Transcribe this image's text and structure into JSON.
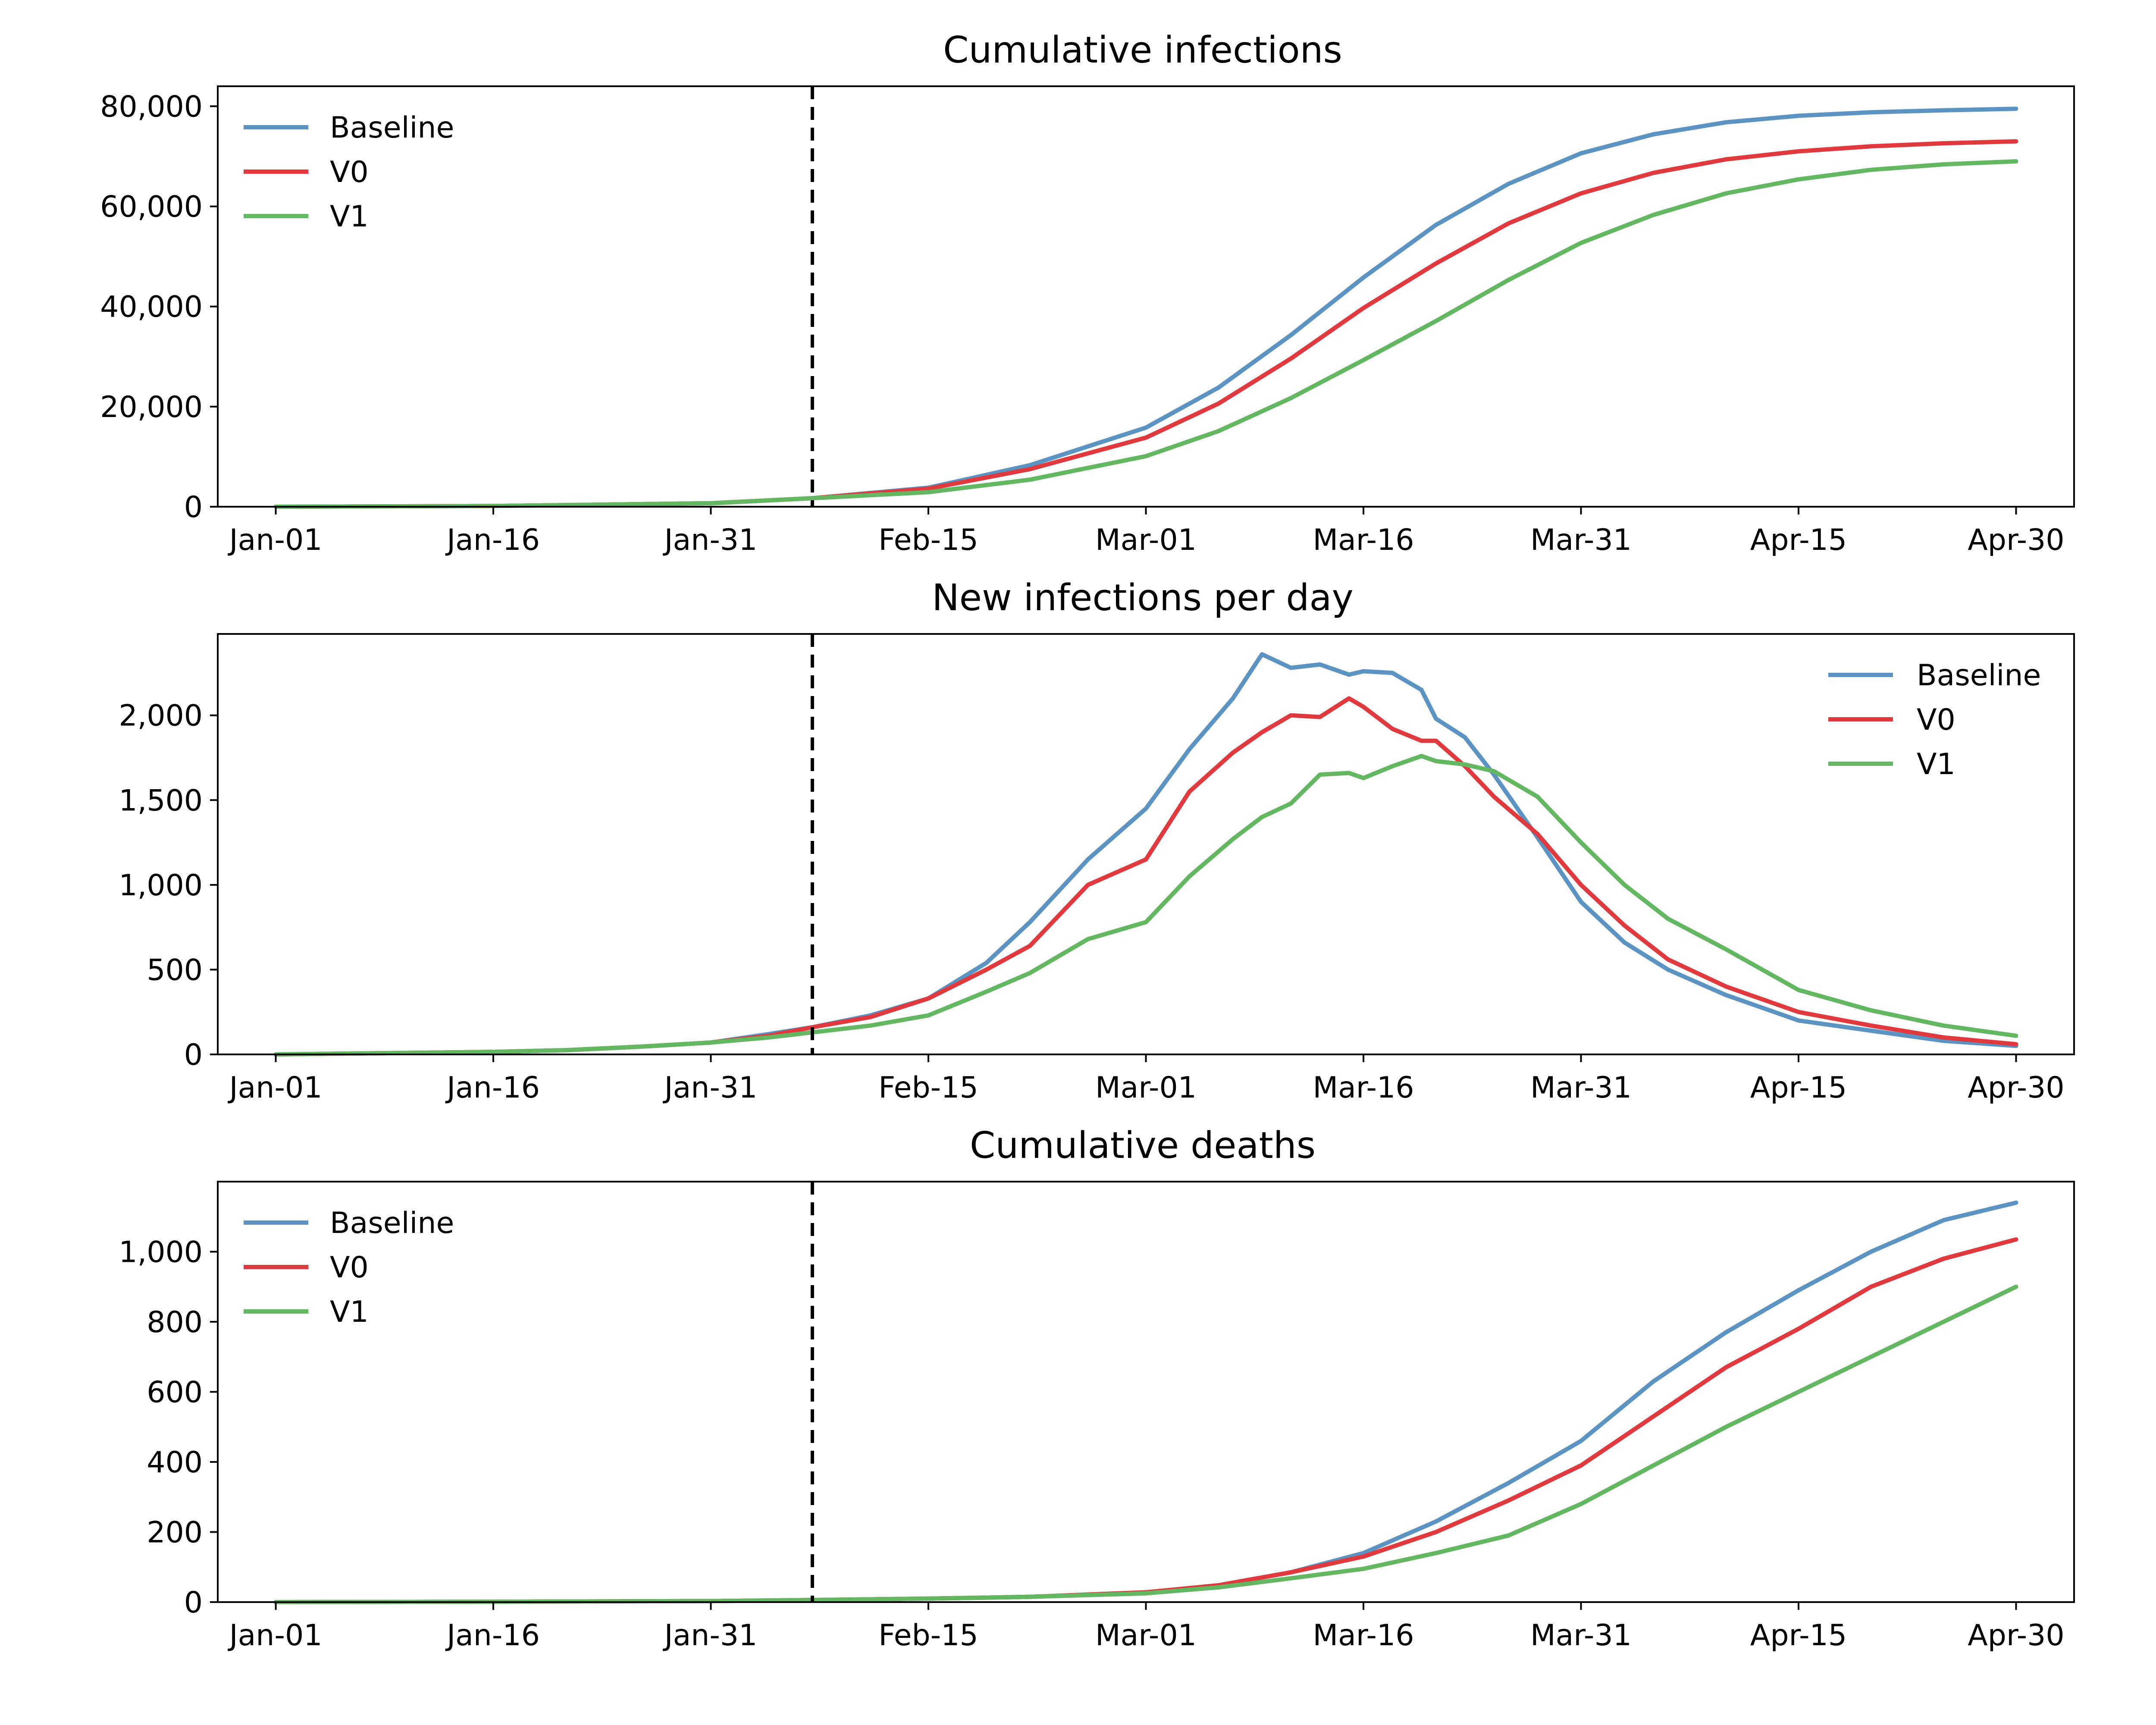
{
  "colors": {
    "Baseline": "#5b93c2",
    "V0": "#e0393e",
    "V1": "#63b761",
    "axis": "#000000",
    "marker": "#000000"
  },
  "chart_data": [
    {
      "type": "line",
      "title": "Cumulative infections",
      "xlabel": "",
      "ylabel": "",
      "xlim": [
        "Dec-28",
        "May-04"
      ],
      "ylim": [
        0,
        84000
      ],
      "x_ticks": [
        "Jan-01",
        "Jan-16",
        "Jan-31",
        "Feb-15",
        "Mar-01",
        "Mar-16",
        "Mar-31",
        "Apr-15",
        "Apr-30"
      ],
      "y_ticks": [
        0,
        20000,
        40000,
        60000,
        80000
      ],
      "y_tick_labels": [
        "0",
        "20,000",
        "40,000",
        "60,000",
        "80,000"
      ],
      "vline": "Feb-07",
      "legend": "upper-left",
      "grid": false,
      "x": [
        "Jan-01",
        "Jan-16",
        "Jan-31",
        "Feb-07",
        "Feb-15",
        "Feb-22",
        "Mar-01",
        "Mar-06",
        "Mar-11",
        "Mar-16",
        "Mar-21",
        "Mar-26",
        "Mar-31",
        "Apr-05",
        "Apr-10",
        "Apr-15",
        "Apr-20",
        "Apr-25",
        "Apr-30"
      ],
      "series": [
        {
          "name": "Baseline",
          "values": [
            0,
            150,
            700,
            1700,
            3800,
            8300,
            15800,
            23800,
            34300,
            45800,
            56300,
            64500,
            70600,
            74400,
            76800,
            78100,
            78800,
            79200,
            79500
          ]
        },
        {
          "name": "V0",
          "values": [
            0,
            150,
            700,
            1700,
            3600,
            7500,
            13800,
            20600,
            29600,
            39700,
            48600,
            56600,
            62600,
            66700,
            69400,
            71000,
            72000,
            72600,
            73000
          ]
        },
        {
          "name": "V1",
          "values": [
            0,
            150,
            700,
            1700,
            2900,
            5400,
            10100,
            15100,
            21700,
            29300,
            37100,
            45300,
            52700,
            58300,
            62600,
            65400,
            67300,
            68400,
            69000
          ]
        }
      ]
    },
    {
      "type": "line",
      "title": "New infections per day",
      "xlabel": "",
      "ylabel": "",
      "xlim": [
        "Dec-28",
        "May-04"
      ],
      "ylim": [
        0,
        2480
      ],
      "x_ticks": [
        "Jan-01",
        "Jan-16",
        "Jan-31",
        "Feb-15",
        "Mar-01",
        "Mar-16",
        "Mar-31",
        "Apr-15",
        "Apr-30"
      ],
      "y_ticks": [
        0,
        500,
        1000,
        1500,
        2000
      ],
      "y_tick_labels": [
        "0",
        "500",
        "1,000",
        "1,500",
        "2,000"
      ],
      "vline": "Feb-07",
      "legend": "upper-right",
      "grid": false,
      "x": [
        "Jan-01",
        "Jan-06",
        "Jan-11",
        "Jan-16",
        "Jan-21",
        "Jan-26",
        "Jan-31",
        "Feb-04",
        "Feb-07",
        "Feb-11",
        "Feb-15",
        "Feb-19",
        "Feb-22",
        "Feb-26",
        "Mar-01",
        "Mar-04",
        "Mar-07",
        "Mar-09",
        "Mar-11",
        "Mar-13",
        "Mar-15",
        "Mar-16",
        "Mar-18",
        "Mar-20",
        "Mar-21",
        "Mar-23",
        "Mar-25",
        "Mar-28",
        "Mar-31",
        "Apr-03",
        "Apr-06",
        "Apr-10",
        "Apr-15",
        "Apr-20",
        "Apr-25",
        "Apr-30"
      ],
      "series": [
        {
          "name": "Baseline",
          "values": [
            0,
            5,
            10,
            15,
            25,
            45,
            70,
            120,
            160,
            230,
            330,
            540,
            780,
            1150,
            1450,
            1800,
            2100,
            2360,
            2280,
            2300,
            2240,
            2260,
            2250,
            2150,
            1980,
            1870,
            1650,
            1280,
            900,
            660,
            500,
            350,
            200,
            140,
            80,
            50
          ]
        },
        {
          "name": "V0",
          "values": [
            0,
            5,
            10,
            15,
            25,
            45,
            70,
            110,
            160,
            220,
            330,
            500,
            640,
            1000,
            1150,
            1550,
            1780,
            1900,
            2000,
            1990,
            2100,
            2050,
            1920,
            1850,
            1850,
            1700,
            1520,
            1300,
            1000,
            760,
            560,
            400,
            250,
            170,
            100,
            60
          ]
        },
        {
          "name": "V1",
          "values": [
            0,
            5,
            10,
            15,
            25,
            45,
            70,
            100,
            130,
            170,
            230,
            370,
            480,
            680,
            780,
            1050,
            1270,
            1400,
            1480,
            1650,
            1660,
            1630,
            1700,
            1760,
            1730,
            1710,
            1670,
            1520,
            1250,
            1000,
            800,
            620,
            380,
            260,
            170,
            110
          ]
        }
      ]
    },
    {
      "type": "line",
      "title": "Cumulative deaths",
      "xlabel": "",
      "ylabel": "",
      "xlim": [
        "Dec-28",
        "May-04"
      ],
      "ylim": [
        0,
        1200
      ],
      "x_ticks": [
        "Jan-01",
        "Jan-16",
        "Jan-31",
        "Feb-15",
        "Mar-01",
        "Mar-16",
        "Mar-31",
        "Apr-15",
        "Apr-30"
      ],
      "y_ticks": [
        0,
        200,
        400,
        600,
        800,
        1000
      ],
      "y_tick_labels": [
        "0",
        "200",
        "400",
        "600",
        "800",
        "1,000"
      ],
      "vline": "Feb-07",
      "legend": "upper-left",
      "grid": false,
      "x": [
        "Jan-01",
        "Jan-16",
        "Jan-31",
        "Feb-07",
        "Feb-15",
        "Feb-22",
        "Mar-01",
        "Mar-06",
        "Mar-11",
        "Mar-16",
        "Mar-21",
        "Mar-26",
        "Mar-31",
        "Apr-05",
        "Apr-10",
        "Apr-15",
        "Apr-20",
        "Apr-25",
        "Apr-30"
      ],
      "series": [
        {
          "name": "Baseline",
          "values": [
            0,
            1,
            3,
            6,
            10,
            15,
            28,
            48,
            85,
            140,
            230,
            340,
            460,
            630,
            770,
            890,
            1000,
            1090,
            1140
          ]
        },
        {
          "name": "V0",
          "values": [
            0,
            1,
            3,
            6,
            10,
            15,
            28,
            48,
            85,
            130,
            200,
            290,
            390,
            530,
            670,
            780,
            900,
            980,
            1035
          ]
        },
        {
          "name": "V1",
          "values": [
            0,
            1,
            3,
            6,
            10,
            15,
            25,
            42,
            68,
            95,
            140,
            190,
            280,
            390,
            500,
            600,
            700,
            800,
            900
          ]
        }
      ]
    }
  ]
}
